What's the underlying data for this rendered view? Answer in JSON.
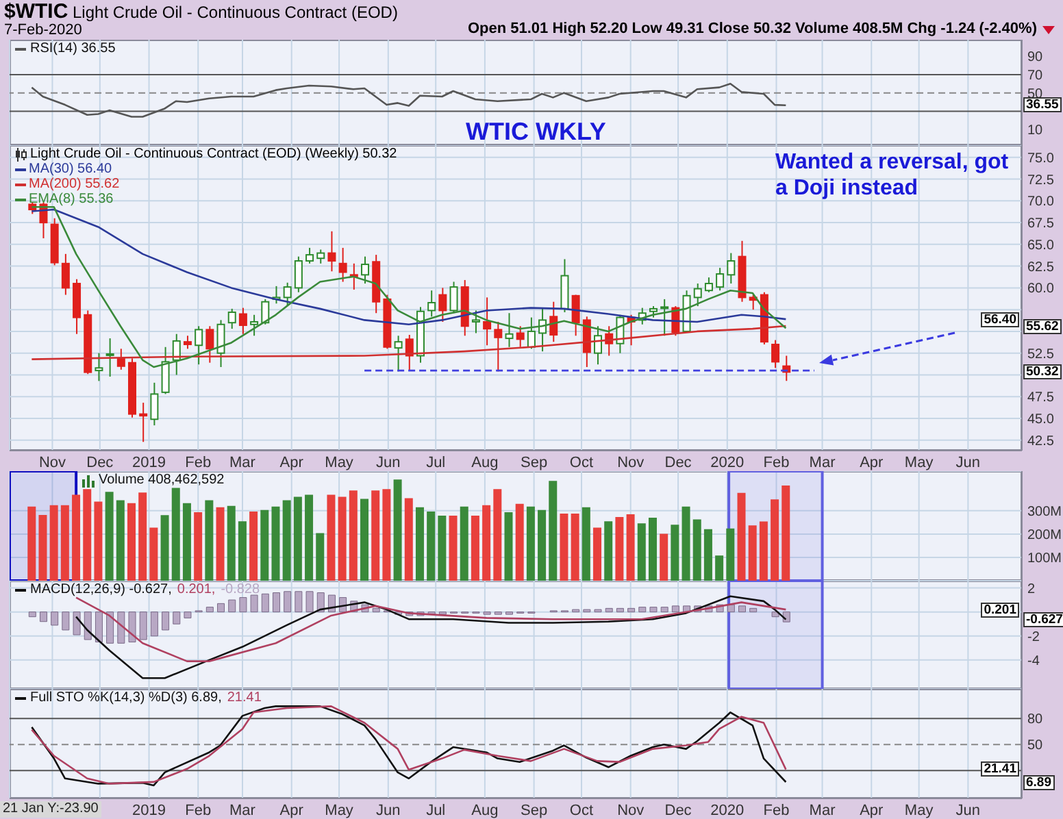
{
  "chart_data": [
    {
      "type": "line",
      "title": "$WTIC Light Crude Oil - Continuous Contract (EOD)",
      "subtitle": "7-Feb-2020",
      "annotations": [
        "Open 51.01 High 52.20 Low 49.31 Close 50.32 Volume 408.5M Chg -1.24 (-2.40%)",
        "WTIC WKLY",
        {
          "text": "36.55",
          "y": 36.55
        }
      ],
      "x": [
        "2018-10-19",
        "2018-10-26",
        "2018-11-09",
        "2018-11-23",
        "2018-11-30",
        "2018-12-07",
        "2018-12-21",
        "2018-12-28",
        "2019-01-11",
        "2019-01-18",
        "2019-01-25",
        "2019-02-08",
        "2019-02-22",
        "2019-03-08",
        "2019-03-22",
        "2019-03-29",
        "2019-04-12",
        "2019-04-26",
        "2019-05-10",
        "2019-05-17",
        "2019-05-31",
        "2019-06-07",
        "2019-06-14",
        "2019-06-21",
        "2019-07-05",
        "2019-07-12",
        "2019-07-26",
        "2019-08-09",
        "2019-08-30",
        "2019-09-06",
        "2019-09-13",
        "2019-09-20",
        "2019-10-04",
        "2019-10-18",
        "2019-10-25",
        "2019-11-15",
        "2019-11-22",
        "2019-12-06",
        "2019-12-13",
        "2019-12-27",
        "2020-01-03",
        "2020-01-10",
        "2020-01-24",
        "2020-01-31",
        "2020-02-07"
      ],
      "series": [
        {
          "name": "RSI(14) 36.55",
          "color": "#555555",
          "values": [
            56,
            46,
            37,
            26,
            27,
            31,
            24,
            24,
            33,
            41,
            40,
            44,
            46,
            46,
            53,
            55,
            58,
            57,
            54,
            55,
            37,
            39,
            36,
            47,
            46,
            52,
            43,
            41,
            43,
            49,
            45,
            50,
            41,
            45,
            49,
            52,
            52,
            45,
            54,
            56,
            60,
            51,
            49,
            37,
            36.55
          ]
        }
      ],
      "xlim": [
        "2018-10-05",
        "2020-07-05"
      ],
      "xticks": [
        {
          "value": "2018-11-01",
          "label": null
        },
        {
          "value": "2018-12-01",
          "label": null
        },
        {
          "value": "2019-01-01",
          "label": null
        },
        {
          "value": "2019-02-01",
          "label": null
        },
        {
          "value": "2019-03-01",
          "label": null
        },
        {
          "value": "2019-04-01",
          "label": null
        },
        {
          "value": "2019-05-01",
          "label": null
        },
        {
          "value": "2019-06-01",
          "label": null
        },
        {
          "value": "2019-07-01",
          "label": null
        },
        {
          "value": "2019-08-01",
          "label": null
        },
        {
          "value": "2019-09-01",
          "label": null
        },
        {
          "value": "2019-10-01",
          "label": null
        },
        {
          "value": "2019-11-01",
          "label": null
        },
        {
          "value": "2019-12-01",
          "label": null
        },
        {
          "value": "2020-01-01",
          "label": null
        },
        {
          "value": "2020-02-01",
          "label": null
        },
        {
          "value": "2020-03-01",
          "label": null
        },
        {
          "value": "2020-04-01",
          "label": null
        },
        {
          "value": "2020-05-01",
          "label": null
        },
        {
          "value": "2020-06-01",
          "label": null
        }
      ],
      "ylim": [
        -7,
        108
      ],
      "yticks": [
        10,
        {
          "value": 30,
          "label": null
        },
        50,
        70,
        90
      ],
      "ref_lines": [
        {
          "axis": "y",
          "value": 70,
          "color": "#555555"
        },
        {
          "axis": "y",
          "value": 30,
          "color": "#555555"
        },
        {
          "axis": "y",
          "value": 50,
          "color": "#888888",
          "line_style": "dashed"
        }
      ],
      "grid": "x",
      "legend": "top left",
      "tick_labels": "y"
    },
    {
      "type": "candlestick",
      "legend_title": "Light Crude Oil - Continuous Contract (EOD) (Weekly) 50.32",
      "annotations": [
        "Wanted a reversal, got a Doji instead",
        {
          "text": "56.40",
          "y": 56.4
        },
        {
          "text": "55.62",
          "y": 55.62
        },
        {
          "text": "50.32",
          "y": 50.32
        }
      ],
      "x": [
        "2018-10-19",
        "2018-10-26",
        "2018-11-02",
        "2018-11-09",
        "2018-11-16",
        "2018-11-23",
        "2018-11-30",
        "2018-12-07",
        "2018-12-14",
        "2018-12-21",
        "2018-12-28",
        "2019-01-04",
        "2019-01-11",
        "2019-01-18",
        "2019-01-25",
        "2019-02-01",
        "2019-02-08",
        "2019-02-15",
        "2019-02-22",
        "2019-03-01",
        "2019-03-08",
        "2019-03-15",
        "2019-03-22",
        "2019-03-29",
        "2019-04-05",
        "2019-04-12",
        "2019-04-19",
        "2019-04-26",
        "2019-05-03",
        "2019-05-10",
        "2019-05-17",
        "2019-05-24",
        "2019-05-31",
        "2019-06-07",
        "2019-06-14",
        "2019-06-21",
        "2019-06-28",
        "2019-07-05",
        "2019-07-12",
        "2019-07-19",
        "2019-07-26",
        "2019-08-02",
        "2019-08-09",
        "2019-08-16",
        "2019-08-23",
        "2019-08-30",
        "2019-09-06",
        "2019-09-13",
        "2019-09-20",
        "2019-09-27",
        "2019-10-04",
        "2019-10-11",
        "2019-10-18",
        "2019-10-25",
        "2019-11-01",
        "2019-11-08",
        "2019-11-15",
        "2019-11-22",
        "2019-11-29",
        "2019-12-06",
        "2019-12-13",
        "2019-12-20",
        "2019-12-27",
        "2020-01-03",
        "2020-01-10",
        "2020-01-17",
        "2020-01-24",
        "2020-01-31",
        "2020-02-07"
      ],
      "ohlc": [
        [
          69.6,
          69.8,
          68.5,
          69.0
        ],
        [
          69.6,
          69.8,
          65.7,
          67.5
        ],
        [
          67.3,
          68.0,
          62.6,
          62.9
        ],
        [
          62.8,
          63.9,
          59.2,
          60.0
        ],
        [
          60.5,
          61.0,
          54.7,
          56.6
        ],
        [
          56.9,
          57.4,
          50.1,
          50.3
        ],
        [
          50.5,
          52.5,
          49.3,
          50.8
        ],
        [
          52.3,
          54.2,
          49.8,
          52.4
        ],
        [
          51.9,
          53.0,
          50.6,
          51.0
        ],
        [
          51.4,
          51.9,
          45.1,
          45.5
        ],
        [
          45.5,
          46.8,
          42.3,
          45.3
        ],
        [
          44.9,
          49.1,
          44.2,
          47.8
        ],
        [
          48.0,
          53.2,
          47.8,
          51.5
        ],
        [
          51.7,
          54.7,
          50.0,
          53.9
        ],
        [
          53.8,
          54.5,
          53.0,
          53.5
        ],
        [
          53.4,
          55.6,
          51.2,
          55.2
        ],
        [
          55.2,
          55.6,
          51.4,
          53.0
        ],
        [
          52.5,
          56.3,
          50.9,
          55.8
        ],
        [
          56.0,
          57.6,
          55.3,
          57.2
        ],
        [
          57.0,
          57.7,
          54.7,
          55.7
        ],
        [
          55.8,
          56.9,
          54.5,
          56.1
        ],
        [
          56.0,
          58.7,
          55.8,
          58.4
        ],
        [
          58.7,
          60.2,
          58.2,
          58.9
        ],
        [
          58.9,
          60.6,
          57.9,
          60.1
        ],
        [
          60.0,
          63.6,
          59.5,
          63.1
        ],
        [
          63.1,
          64.6,
          62.8,
          63.8
        ],
        [
          63.4,
          64.4,
          62.8,
          64.0
        ],
        [
          64.0,
          66.5,
          61.9,
          63.1
        ],
        [
          62.8,
          64.6,
          60.7,
          61.8
        ],
        [
          61.5,
          62.8,
          59.8,
          61.3
        ],
        [
          61.5,
          63.6,
          60.5,
          62.7
        ],
        [
          63.0,
          63.8,
          57.1,
          58.4
        ],
        [
          58.7,
          59.2,
          53.0,
          53.2
        ],
        [
          53.1,
          54.5,
          50.4,
          53.8
        ],
        [
          54.1,
          54.6,
          50.5,
          52.2
        ],
        [
          52.2,
          57.8,
          51.4,
          57.3
        ],
        [
          57.4,
          59.7,
          56.7,
          58.3
        ],
        [
          59.2,
          60.0,
          56.1,
          57.4
        ],
        [
          57.4,
          60.7,
          57.1,
          60.1
        ],
        [
          60.1,
          60.9,
          54.5,
          55.6
        ],
        [
          56.1,
          57.4,
          54.8,
          56.3
        ],
        [
          56.1,
          58.9,
          53.4,
          55.3
        ],
        [
          55.2,
          56.1,
          50.4,
          54.3
        ],
        [
          54.2,
          57.1,
          53.2,
          54.7
        ],
        [
          54.8,
          55.6,
          53.2,
          54.1
        ],
        [
          53.2,
          56.6,
          53.0,
          55.0
        ],
        [
          54.8,
          57.6,
          52.7,
          56.3
        ],
        [
          56.7,
          58.4,
          53.8,
          54.6
        ],
        [
          57.6,
          63.3,
          57.2,
          61.4
        ],
        [
          59.1,
          59.2,
          54.5,
          56.0
        ],
        [
          56.3,
          56.7,
          50.9,
          52.6
        ],
        [
          52.5,
          55.6,
          51.2,
          54.5
        ],
        [
          54.7,
          55.6,
          52.2,
          53.6
        ],
        [
          53.6,
          56.9,
          52.5,
          56.6
        ],
        [
          56.6,
          56.9,
          53.4,
          56.1
        ],
        [
          56.3,
          57.7,
          55.8,
          57.1
        ],
        [
          57.3,
          57.9,
          56.6,
          57.6
        ],
        [
          57.7,
          58.7,
          54.5,
          57.8
        ],
        [
          57.7,
          57.9,
          54.5,
          54.9
        ],
        [
          55.0,
          59.7,
          54.9,
          59.1
        ],
        [
          58.9,
          60.5,
          57.9,
          59.9
        ],
        [
          59.7,
          61.2,
          59.5,
          60.5
        ],
        [
          60.1,
          62.3,
          59.7,
          61.6
        ],
        [
          61.5,
          64.0,
          60.5,
          63.1
        ],
        [
          63.6,
          65.4,
          58.4,
          58.9
        ],
        [
          58.9,
          59.2,
          57.5,
          58.6
        ],
        [
          59.2,
          59.5,
          53.5,
          53.8
        ],
        [
          53.5,
          54.0,
          50.8,
          51.5
        ],
        [
          51.01,
          52.2,
          49.31,
          50.32
        ]
      ],
      "colors": [
        "#e0201c",
        "#e0201c",
        "#e0201c",
        "#e0201c",
        "#e0201c",
        "#e0201c",
        "#2e8b2e",
        "#2e8b2e",
        "#e0201c",
        "#e0201c",
        "#e0201c",
        "#2e8b2e",
        "#2e8b2e",
        "#2e8b2e",
        "#e0201c",
        "#2e8b2e",
        "#e0201c",
        "#2e8b2e",
        "#2e8b2e",
        "#e0201c",
        "#2e8b2e",
        "#2e8b2e",
        "#2e8b2e",
        "#2e8b2e",
        "#2e8b2e",
        "#2e8b2e",
        "#2e8b2e",
        "#e0201c",
        "#e0201c",
        "#e0201c",
        "#2e8b2e",
        "#e0201c",
        "#e0201c",
        "#2e8b2e",
        "#e0201c",
        "#2e8b2e",
        "#2e8b2e",
        "#e0201c",
        "#2e8b2e",
        "#e0201c",
        "#2e8b2e",
        "#e0201c",
        "#e0201c",
        "#2e8b2e",
        "#e0201c",
        "#2e8b2e",
        "#2e8b2e",
        "#e0201c",
        "#2e8b2e",
        "#e0201c",
        "#e0201c",
        "#2e8b2e",
        "#e0201c",
        "#2e8b2e",
        "#e0201c",
        "#2e8b2e",
        "#2e8b2e",
        "#2e8b2e",
        "#e0201c",
        "#2e8b2e",
        "#2e8b2e",
        "#2e8b2e",
        "#2e8b2e",
        "#2e8b2e",
        "#e0201c",
        "#e0201c",
        "#e0201c",
        "#e0201c",
        "#e0201c"
      ],
      "series": [
        {
          "type": "line",
          "name": "MA(30) 56.40",
          "color": "#2b3a9a",
          "x": [
            "2018-10-19",
            "2018-11-02",
            "2018-11-30",
            "2018-12-28",
            "2019-01-25",
            "2019-02-22",
            "2019-03-22",
            "2019-04-19",
            "2019-05-17",
            "2019-06-14",
            "2019-07-05",
            "2019-08-02",
            "2019-08-30",
            "2019-09-20",
            "2019-10-18",
            "2019-11-15",
            "2019-12-13",
            "2020-01-10",
            "2020-01-24",
            "2020-02-07"
          ],
          "values": [
            68.8,
            69.0,
            67.0,
            63.9,
            61.8,
            60.0,
            58.7,
            57.6,
            56.3,
            55.8,
            56.3,
            57.4,
            57.7,
            57.6,
            57.0,
            56.3,
            56.1,
            56.9,
            56.7,
            56.4
          ]
        },
        {
          "type": "line",
          "name": "MA(200) 55.62",
          "color": "#d03030",
          "x": [
            "2018-10-19",
            "2019-01-25",
            "2019-05-17",
            "2019-07-19",
            "2019-08-30",
            "2019-10-18",
            "2019-12-13",
            "2020-01-17",
            "2020-02-07"
          ],
          "values": [
            51.8,
            52.1,
            52.2,
            52.7,
            53.2,
            54.0,
            55.0,
            55.3,
            55.62
          ]
        },
        {
          "type": "line",
          "name": "EMA(8) 55.36",
          "color": "#3a8a3a",
          "x": [
            "2018-10-19",
            "2018-11-02",
            "2018-11-16",
            "2018-11-30",
            "2018-12-14",
            "2018-12-28",
            "2019-01-04",
            "2019-01-25",
            "2019-02-22",
            "2019-03-22",
            "2019-04-05",
            "2019-04-19",
            "2019-05-10",
            "2019-05-24",
            "2019-06-07",
            "2019-06-21",
            "2019-07-05",
            "2019-07-19",
            "2019-08-02",
            "2019-08-23",
            "2019-09-06",
            "2019-09-20",
            "2019-10-18",
            "2019-11-01",
            "2019-11-15",
            "2019-12-06",
            "2019-12-20",
            "2020-01-03",
            "2020-01-17",
            "2020-01-24",
            "2020-02-07"
          ],
          "values": [
            69.3,
            69.3,
            63.9,
            59.7,
            55.6,
            51.7,
            50.9,
            51.9,
            53.7,
            56.9,
            58.9,
            60.7,
            61.3,
            60.5,
            57.4,
            56.1,
            56.9,
            57.4,
            56.3,
            55.3,
            55.6,
            56.2,
            55.0,
            56.1,
            56.9,
            57.6,
            58.7,
            59.7,
            59.4,
            57.6,
            55.36
          ]
        },
        {
          "type": "line",
          "color": "#4040e0",
          "line_style": "dashed",
          "x": [
            "2019-05-17",
            "2020-02-25"
          ],
          "values": [
            50.5,
            50.5
          ]
        }
      ],
      "xlim": [
        "2018-10-05",
        "2020-07-05"
      ],
      "xticks": [
        {
          "value": "2018-11-01",
          "label": "Nov"
        },
        {
          "value": "2018-12-01",
          "label": "Dec"
        },
        {
          "value": "2019-01-01",
          "label": "2019"
        },
        {
          "value": "2019-02-01",
          "label": "Feb"
        },
        {
          "value": "2019-03-01",
          "label": "Mar"
        },
        {
          "value": "2019-04-01",
          "label": "Apr"
        },
        {
          "value": "2019-05-01",
          "label": "May"
        },
        {
          "value": "2019-06-01",
          "label": "Jun"
        },
        {
          "value": "2019-07-01",
          "label": "Jul"
        },
        {
          "value": "2019-08-01",
          "label": "Aug"
        },
        {
          "value": "2019-09-01",
          "label": "Sep"
        },
        {
          "value": "2019-10-01",
          "label": "Oct"
        },
        {
          "value": "2019-11-01",
          "label": "Nov"
        },
        {
          "value": "2019-12-01",
          "label": "Dec"
        },
        {
          "value": "2020-01-01",
          "label": "2020"
        },
        {
          "value": "2020-02-01",
          "label": "Feb"
        },
        {
          "value": "2020-03-01",
          "label": "Mar"
        },
        {
          "value": "2020-04-01",
          "label": "Apr"
        },
        {
          "value": "2020-05-01",
          "label": "May"
        },
        {
          "value": "2020-06-01",
          "label": "Jun"
        }
      ],
      "ylim": [
        41.3,
        76.4
      ],
      "yticks": [
        42.5,
        {
          "value": 45,
          "label": "45.0"
        },
        47.5,
        {
          "value": 50,
          "label": null
        },
        52.5,
        {
          "value": 55,
          "label": null
        },
        {
          "value": 57.5,
          "label": null
        },
        {
          "value": 60,
          "label": "60.0"
        },
        62.5,
        {
          "value": 65,
          "label": "65.0"
        },
        67.5,
        {
          "value": 70,
          "label": "70.0"
        },
        72.5,
        {
          "value": 75,
          "label": "75.0"
        }
      ],
      "grid": true,
      "legend": "top left"
    },
    {
      "type": "bar",
      "x": [
        "2018-10-19",
        "2018-10-26",
        "2018-11-02",
        "2018-11-09",
        "2018-11-16",
        "2018-11-23",
        "2018-11-30",
        "2018-12-07",
        "2018-12-14",
        "2018-12-21",
        "2018-12-28",
        "2019-01-04",
        "2019-01-11",
        "2019-01-18",
        "2019-01-25",
        "2019-02-01",
        "2019-02-08",
        "2019-02-15",
        "2019-02-22",
        "2019-03-01",
        "2019-03-08",
        "2019-03-15",
        "2019-03-22",
        "2019-03-29",
        "2019-04-05",
        "2019-04-12",
        "2019-04-19",
        "2019-04-26",
        "2019-05-03",
        "2019-05-10",
        "2019-05-17",
        "2019-05-24",
        "2019-05-31",
        "2019-06-07",
        "2019-06-14",
        "2019-06-21",
        "2019-06-28",
        "2019-07-05",
        "2019-07-12",
        "2019-07-19",
        "2019-07-26",
        "2019-08-02",
        "2019-08-09",
        "2019-08-16",
        "2019-08-23",
        "2019-08-30",
        "2019-09-06",
        "2019-09-13",
        "2019-09-20",
        "2019-09-27",
        "2019-10-04",
        "2019-10-11",
        "2019-10-18",
        "2019-10-25",
        "2019-11-01",
        "2019-11-08",
        "2019-11-15",
        "2019-11-22",
        "2019-11-29",
        "2019-12-06",
        "2019-12-13",
        "2019-12-20",
        "2019-12-27",
        "2020-01-03",
        "2020-01-10",
        "2020-01-17",
        "2020-01-24",
        "2020-01-31",
        "2020-02-07"
      ],
      "series": [
        {
          "name": "Volume 408,462,592",
          "colors": [
            "#e8403c",
            "#e8403c",
            "#e8403c",
            "#e8403c",
            "#e8403c",
            "#e8403c",
            "#e8403c",
            "#3a8a3a",
            "#3a8a3a",
            "#e8403c",
            "#e8403c",
            "#e8403c",
            "#3a8a3a",
            "#3a8a3a",
            "#3a8a3a",
            "#e8403c",
            "#3a8a3a",
            "#e8403c",
            "#3a8a3a",
            "#3a8a3a",
            "#e8403c",
            "#3a8a3a",
            "#3a8a3a",
            "#3a8a3a",
            "#3a8a3a",
            "#3a8a3a",
            "#3a8a3a",
            "#e8403c",
            "#e8403c",
            "#e8403c",
            "#3a8a3a",
            "#e8403c",
            "#e8403c",
            "#3a8a3a",
            "#e8403c",
            "#3a8a3a",
            "#3a8a3a",
            "#3a8a3a",
            "#e8403c",
            "#3a8a3a",
            "#e8403c",
            "#e8403c",
            "#e8403c",
            "#3a8a3a",
            "#e8403c",
            "#3a8a3a",
            "#3a8a3a",
            "#3a8a3a",
            "#e8403c",
            "#e8403c",
            "#3a8a3a",
            "#e8403c",
            "#3a8a3a",
            "#e8403c",
            "#e8403c",
            "#3a8a3a",
            "#3a8a3a",
            "#e8403c",
            "#3a8a3a",
            "#3a8a3a",
            "#3a8a3a",
            "#3a8a3a",
            "#3a8a3a",
            "#3a8a3a",
            "#e8403c",
            "#e8403c",
            "#e8403c",
            "#e8403c",
            "#e8403c"
          ],
          "values": [
            318,
            282,
            324,
            324,
            369,
            393,
            339,
            381,
            345,
            333,
            378,
            228,
            281,
            398,
            333,
            294,
            345,
            315,
            321,
            255,
            297,
            303,
            318,
            345,
            360,
            369,
            204,
            369,
            360,
            387,
            351,
            387,
            393,
            434,
            354,
            315,
            297,
            279,
            279,
            318,
            279,
            324,
            393,
            294,
            330,
            318,
            303,
            428,
            288,
            288,
            315,
            228,
            255,
            273,
            285,
            246,
            270,
            201,
            240,
            318,
            263,
            221,
            108,
            224,
            377,
            237,
            254,
            349,
            408.46
          ]
        }
      ],
      "xlim": [
        "2018-10-05",
        "2020-07-05"
      ],
      "xticks": [
        {
          "value": "2018-11-01",
          "label": null
        },
        {
          "value": "2018-12-01",
          "label": null
        },
        {
          "value": "2019-01-01",
          "label": null
        },
        {
          "value": "2019-02-01",
          "label": null
        },
        {
          "value": "2019-03-01",
          "label": null
        },
        {
          "value": "2019-04-01",
          "label": null
        },
        {
          "value": "2019-05-01",
          "label": null
        },
        {
          "value": "2019-06-01",
          "label": null
        },
        {
          "value": "2019-07-01",
          "label": null
        },
        {
          "value": "2019-08-01",
          "label": null
        },
        {
          "value": "2019-09-01",
          "label": null
        },
        {
          "value": "2019-10-01",
          "label": null
        },
        {
          "value": "2019-11-01",
          "label": null
        },
        {
          "value": "2019-12-01",
          "label": null
        },
        {
          "value": "2020-01-01",
          "label": null
        },
        {
          "value": "2020-02-01",
          "label": null
        },
        {
          "value": "2020-03-01",
          "label": null
        },
        {
          "value": "2020-04-01",
          "label": null
        },
        {
          "value": "2020-05-01",
          "label": null
        },
        {
          "value": "2020-06-01",
          "label": null
        }
      ],
      "bands": [
        {
          "axis": "x",
          "from": "2018-10-05",
          "to": "2018-11-16",
          "color": "#1010c0"
        },
        {
          "axis": "x",
          "from": "2020-01-02",
          "to": "2020-03-01",
          "color": "#6060e0"
        }
      ],
      "ylim": [
        0,
        470
      ],
      "yticks": [
        {
          "value": 100,
          "label": "100M"
        },
        {
          "value": 200,
          "label": "200M"
        },
        {
          "value": 300,
          "label": "300M"
        }
      ],
      "grid": true,
      "legend": "top left",
      "tick_labels": "y"
    },
    {
      "type": "line",
      "annotations": [
        {
          "text": "0.201",
          "y": 0.201
        },
        {
          "text": "-0.627",
          "y": -0.627
        }
      ],
      "x": [
        "2018-10-19",
        "2018-10-26",
        "2018-11-02",
        "2018-11-09",
        "2018-11-16",
        "2018-11-23",
        "2018-11-30",
        "2018-12-07",
        "2018-12-14",
        "2018-12-21",
        "2018-12-28",
        "2019-01-04",
        "2019-01-11",
        "2019-01-18",
        "2019-01-25",
        "2019-02-01",
        "2019-02-08",
        "2019-02-15",
        "2019-02-22",
        "2019-03-01",
        "2019-03-08",
        "2019-03-15",
        "2019-03-22",
        "2019-03-29",
        "2019-04-05",
        "2019-04-12",
        "2019-04-19",
        "2019-04-26",
        "2019-05-03",
        "2019-05-10",
        "2019-05-17",
        "2019-05-24",
        "2019-05-31",
        "2019-06-07",
        "2019-06-14",
        "2019-06-21",
        "2019-06-28",
        "2019-07-05",
        "2019-07-12",
        "2019-07-19",
        "2019-07-26",
        "2019-08-02",
        "2019-08-09",
        "2019-08-16",
        "2019-08-23",
        "2019-08-30",
        "2019-09-06",
        "2019-09-13",
        "2019-09-20",
        "2019-09-27",
        "2019-10-04",
        "2019-10-11",
        "2019-10-18",
        "2019-10-25",
        "2019-11-01",
        "2019-11-08",
        "2019-11-15",
        "2019-11-22",
        "2019-11-29",
        "2019-12-06",
        "2019-12-13",
        "2019-12-20",
        "2019-12-27",
        "2020-01-03",
        "2020-01-10",
        "2020-01-17",
        "2020-01-24",
        "2020-01-31",
        "2020-02-07"
      ],
      "series": [
        {
          "type": "line",
          "name": "MACD(12,26,9) -0.627,",
          "color": "#111111",
          "x": [
            "2018-11-16",
            "2018-11-23",
            "2018-12-07",
            "2018-12-28",
            "2019-01-11",
            "2019-02-08",
            "2019-03-01",
            "2019-03-29",
            "2019-04-19",
            "2019-05-17",
            "2019-05-31",
            "2019-06-14",
            "2019-07-12",
            "2019-08-16",
            "2019-09-13",
            "2019-10-18",
            "2019-11-15",
            "2019-12-06",
            "2020-01-03",
            "2020-01-24",
            "2020-01-31",
            "2020-02-07"
          ],
          "values": [
            -0.4,
            -1.5,
            -3.2,
            -5.5,
            -5.5,
            -4.0,
            -2.9,
            -1.1,
            0.2,
            0.8,
            0.2,
            -0.6,
            -0.6,
            -0.9,
            -0.9,
            -0.8,
            -0.6,
            -0.1,
            1.3,
            0.9,
            0.2,
            -0.627
          ]
        },
        {
          "type": "line",
          "name": "0.201,",
          "color": "#b04060",
          "x": [
            "2018-11-16",
            "2018-12-07",
            "2018-12-28",
            "2019-01-25",
            "2019-02-08",
            "2019-03-22",
            "2019-04-26",
            "2019-05-24",
            "2019-06-14",
            "2019-08-02",
            "2019-09-13",
            "2019-11-08",
            "2019-12-20",
            "2020-01-10",
            "2020-02-07"
          ],
          "values": [
            1.2,
            -0.3,
            -2.6,
            -4.1,
            -4.1,
            -2.6,
            -0.3,
            0.5,
            -0.1,
            -0.5,
            -0.6,
            -0.6,
            0.3,
            0.8,
            0.201
          ]
        },
        {
          "type": "bar",
          "name": "-0.828",
          "color": "#b8a8c4",
          "values": [
            -0.4,
            -0.8,
            -1.1,
            -1.5,
            -1.9,
            -2.3,
            -2.5,
            -2.6,
            -2.6,
            -2.5,
            -2.3,
            -2.0,
            -1.5,
            -1.0,
            -0.5,
            0.1,
            0.4,
            0.7,
            1.0,
            1.2,
            1.4,
            1.5,
            1.6,
            1.7,
            1.7,
            1.7,
            1.6,
            1.4,
            1.2,
            0.9,
            0.6,
            0.3,
            0.1,
            -0.2,
            -0.3,
            -0.3,
            -0.2,
            -0.2,
            -0.1,
            -0.1,
            -0.1,
            -0.2,
            -0.2,
            -0.2,
            -0.1,
            -0.1,
            0.0,
            0.1,
            0.1,
            0.2,
            0.2,
            0.2,
            0.3,
            0.3,
            0.3,
            0.4,
            0.4,
            0.4,
            0.5,
            0.5,
            0.5,
            0.5,
            0.6,
            0.6,
            0.5,
            0.3,
            0.0,
            -0.4,
            -0.828
          ]
        }
      ],
      "xlim": [
        "2018-10-05",
        "2020-07-05"
      ],
      "xticks": [
        {
          "value": "2018-11-01",
          "label": null
        },
        {
          "value": "2018-12-01",
          "label": null
        },
        {
          "value": "2019-01-01",
          "label": null
        },
        {
          "value": "2019-02-01",
          "label": null
        },
        {
          "value": "2019-03-01",
          "label": null
        },
        {
          "value": "2019-04-01",
          "label": null
        },
        {
          "value": "2019-05-01",
          "label": null
        },
        {
          "value": "2019-06-01",
          "label": null
        },
        {
          "value": "2019-07-01",
          "label": null
        },
        {
          "value": "2019-08-01",
          "label": null
        },
        {
          "value": "2019-09-01",
          "label": null
        },
        {
          "value": "2019-10-01",
          "label": null
        },
        {
          "value": "2019-11-01",
          "label": null
        },
        {
          "value": "2019-12-01",
          "label": null
        },
        {
          "value": "2020-01-01",
          "label": null
        },
        {
          "value": "2020-02-01",
          "label": null
        },
        {
          "value": "2020-03-01",
          "label": null
        },
        {
          "value": "2020-04-01",
          "label": null
        },
        {
          "value": "2020-05-01",
          "label": null
        },
        {
          "value": "2020-06-01",
          "label": null
        }
      ],
      "bands": [
        {
          "axis": "x",
          "from": "2020-01-02",
          "to": "2020-03-01",
          "color": "#6060e0"
        }
      ],
      "ylim": [
        -6.4,
        2.6
      ],
      "yticks": [
        -4,
        -2,
        {
          "value": 0,
          "label": null
        },
        2
      ],
      "grid": true,
      "legend": "top left",
      "tick_labels": "y"
    },
    {
      "type": "line",
      "annotations": [
        "21 Jan Y:-23.90",
        {
          "text": "21.41",
          "y": 21.41
        },
        {
          "text": "6.89",
          "y": 6.89
        }
      ],
      "series": [
        {
          "name": "Full STO %K(14,3) %D(3) 6.89,",
          "color": "#111111",
          "x": [
            "2018-10-19",
            "2018-11-02",
            "2018-11-09",
            "2018-11-30",
            "2018-12-28",
            "2019-01-04",
            "2019-01-11",
            "2019-02-08",
            "2019-02-15",
            "2019-03-01",
            "2019-03-15",
            "2019-03-22",
            "2019-04-19",
            "2019-05-03",
            "2019-05-17",
            "2019-05-24",
            "2019-06-07",
            "2019-06-14",
            "2019-06-28",
            "2019-07-12",
            "2019-08-02",
            "2019-08-09",
            "2019-08-23",
            "2019-09-13",
            "2019-09-20",
            "2019-10-04",
            "2019-10-18",
            "2019-11-01",
            "2019-11-15",
            "2019-11-22",
            "2019-12-06",
            "2019-12-13",
            "2019-12-27",
            "2020-01-03",
            "2020-01-17",
            "2020-01-24",
            "2020-02-07"
          ],
          "values": [
            70,
            34,
            11,
            5,
            6,
            3,
            18,
            41,
            49,
            83,
            92,
            94,
            94,
            85,
            72,
            56,
            18,
            11,
            30,
            47,
            41,
            34,
            30,
            43,
            49,
            35,
            24,
            37,
            47,
            50,
            45,
            54,
            75,
            87,
            72,
            34,
            6.89
          ]
        },
        {
          "name": "21.41",
          "color": "#b04060",
          "x": [
            "2018-10-19",
            "2018-11-02",
            "2018-11-23",
            "2018-12-07",
            "2019-01-04",
            "2019-01-25",
            "2019-02-08",
            "2019-03-01",
            "2019-03-08",
            "2019-03-29",
            "2019-04-26",
            "2019-05-17",
            "2019-06-07",
            "2019-06-14",
            "2019-07-05",
            "2019-07-19",
            "2019-08-09",
            "2019-08-30",
            "2019-09-20",
            "2019-10-11",
            "2019-10-25",
            "2019-11-15",
            "2019-12-06",
            "2019-12-20",
            "2019-12-27",
            "2020-01-10",
            "2020-01-24",
            "2020-02-07"
          ],
          "values": [
            67,
            37,
            11,
            5,
            7,
            22,
            37,
            68,
            87,
            92,
            94,
            75,
            45,
            21,
            34,
            44,
            37,
            31,
            45,
            31,
            30,
            45,
            49,
            53,
            68,
            82,
            75,
            21.41
          ]
        }
      ],
      "xlim": [
        "2018-10-05",
        "2020-07-05"
      ],
      "xticks": [
        {
          "value": "2018-11-01",
          "label": null
        },
        {
          "value": "2018-12-01",
          "label": null
        },
        {
          "value": "2019-01-01",
          "label": "2019"
        },
        {
          "value": "2019-02-01",
          "label": "Feb"
        },
        {
          "value": "2019-03-01",
          "label": "Mar"
        },
        {
          "value": "2019-04-01",
          "label": "Apr"
        },
        {
          "value": "2019-05-01",
          "label": "May"
        },
        {
          "value": "2019-06-01",
          "label": "Jun"
        },
        {
          "value": "2019-07-01",
          "label": "Jul"
        },
        {
          "value": "2019-08-01",
          "label": "Aug"
        },
        {
          "value": "2019-09-01",
          "label": "Sep"
        },
        {
          "value": "2019-10-01",
          "label": "Oct"
        },
        {
          "value": "2019-11-01",
          "label": "Nov"
        },
        {
          "value": "2019-12-01",
          "label": "Dec"
        },
        {
          "value": "2020-01-01",
          "label": "2020"
        },
        {
          "value": "2020-02-01",
          "label": "Feb"
        },
        {
          "value": "2020-03-01",
          "label": "Mar"
        },
        {
          "value": "2020-04-01",
          "label": "Apr"
        },
        {
          "value": "2020-05-01",
          "label": "May"
        },
        {
          "value": "2020-06-01",
          "label": "Jun"
        }
      ],
      "ylim": [
        -12,
        114
      ],
      "yticks": [
        {
          "value": 20,
          "label": null
        },
        50,
        80
      ],
      "ref_lines": [
        {
          "axis": "y",
          "value": 80,
          "color": "#555555"
        },
        {
          "axis": "y",
          "value": 20,
          "color": "#555555"
        },
        {
          "axis": "y",
          "value": 50,
          "color": "#888888",
          "line_style": "dashed"
        }
      ],
      "grid": "x",
      "legend": "top left"
    }
  ]
}
